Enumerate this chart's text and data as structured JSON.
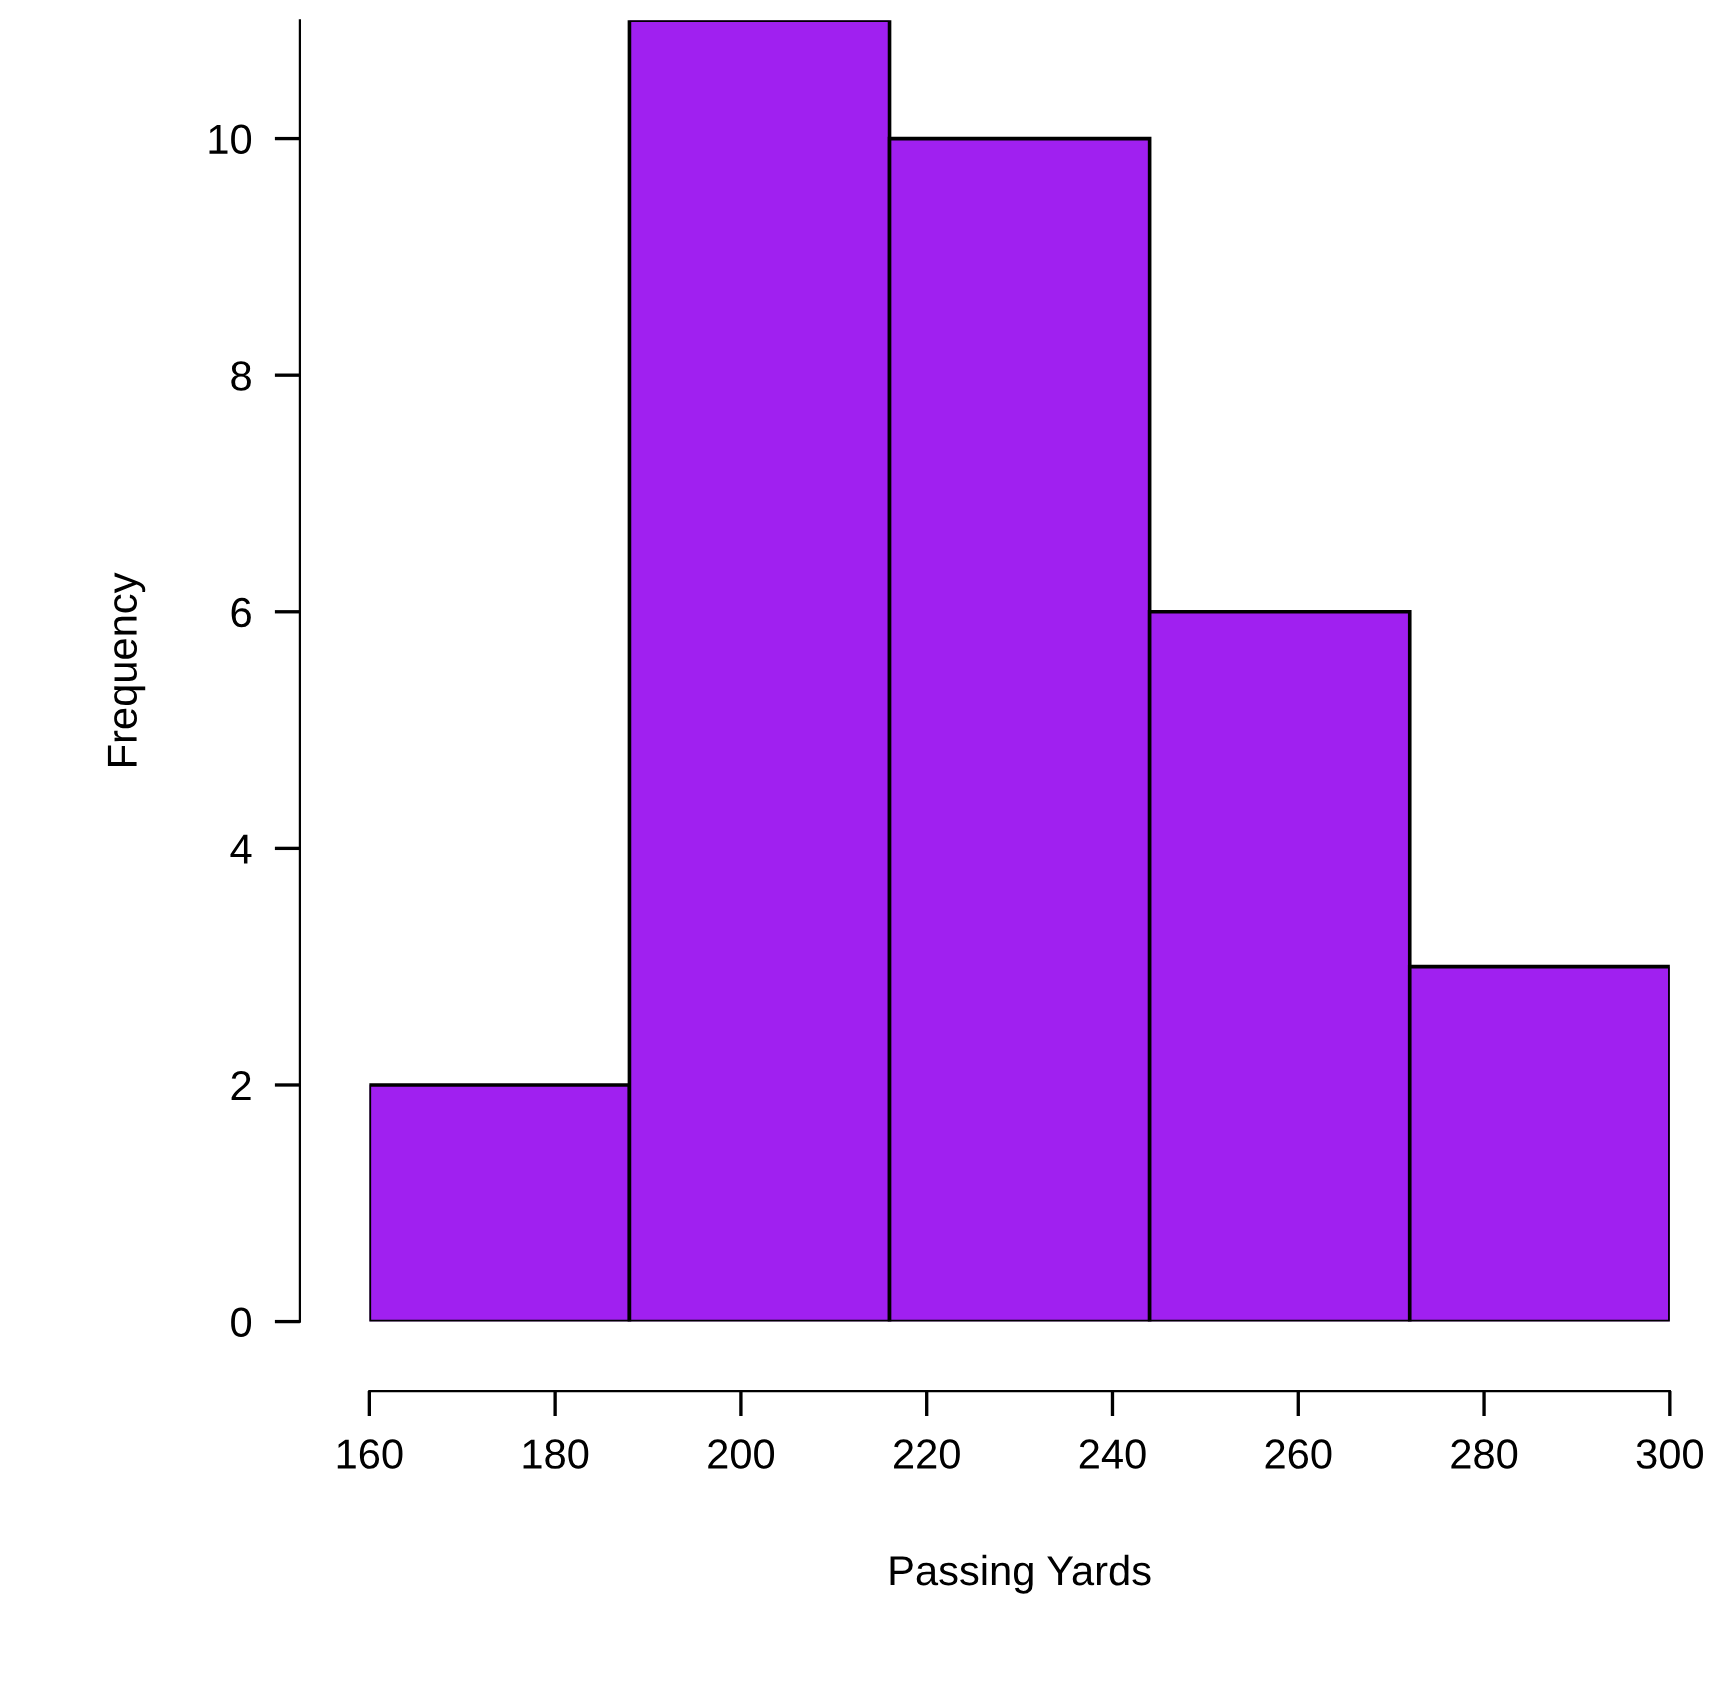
{
  "chart_data": {
    "type": "histogram",
    "xlabel": "Passing Yards",
    "ylabel": "Frequency",
    "bins": [
      160,
      188,
      216,
      244,
      272,
      300
    ],
    "values": [
      2,
      11,
      10,
      6,
      3
    ],
    "color": "#a020f0",
    "xlim": [
      160,
      300
    ],
    "ylim": [
      0,
      11
    ],
    "xticks": [
      160,
      180,
      200,
      220,
      240,
      260,
      280,
      300
    ],
    "yticks": [
      0,
      2,
      4,
      6,
      8,
      10
    ],
    "grid": false
  }
}
